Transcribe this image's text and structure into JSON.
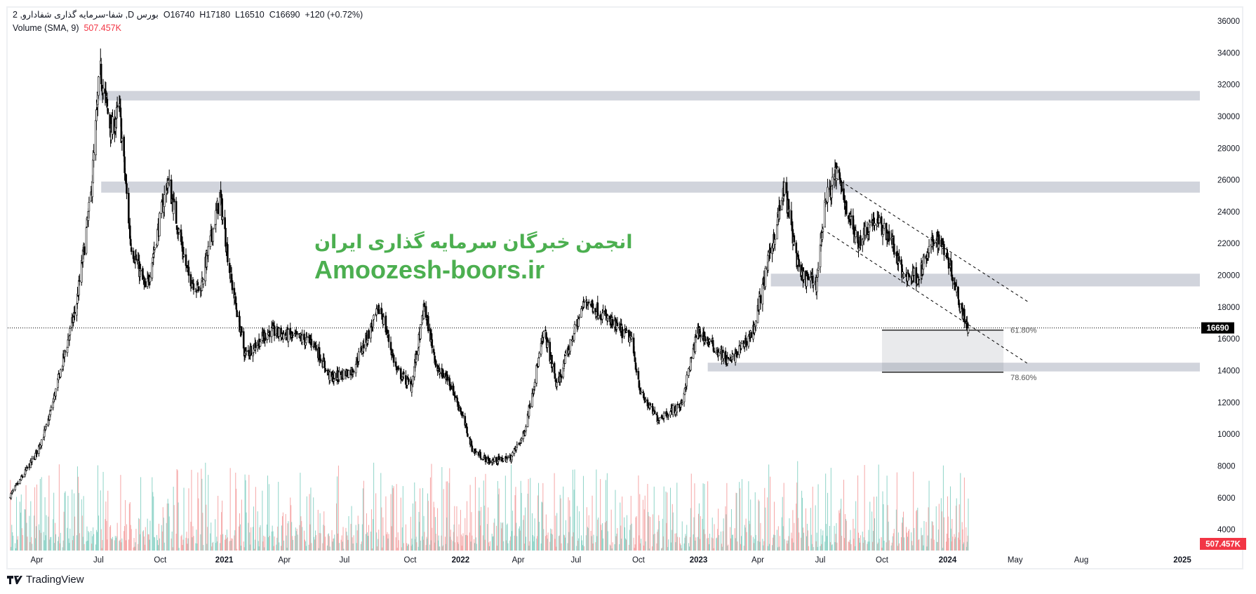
{
  "header": {
    "symbol_line": "شفا-سرمایه گذاری شفادارو, 2 ,D بورس",
    "open": "O16740",
    "high": "H17180",
    "low": "L16510",
    "close": "C16690",
    "change": "+120 (+0.72%)",
    "volume_label": "Volume (SMA, 9)",
    "volume_value": "507.457K"
  },
  "watermark": {
    "line1": "انجمن خبرگان سرمایه گذاری ایران",
    "line2": "Amoozesh-boors.ir",
    "color": "#4caf50"
  },
  "branding": {
    "name": "TradingView"
  },
  "colors": {
    "candle": "#000000",
    "zone": "#d1d4dc",
    "volume_up": "#8fd4c8",
    "volume_down": "#f5a6a6",
    "volume_badge": "#f23645",
    "price_badge": "#000000"
  },
  "chart_data": {
    "type": "candlestick",
    "title": "",
    "price_axis": {
      "ticks": [
        36000,
        34000,
        32000,
        30000,
        28000,
        26000,
        24000,
        22000,
        20000,
        18000,
        16000,
        14000,
        12000,
        10000,
        8000,
        6000,
        4000
      ],
      "range": [
        4000,
        36000
      ]
    },
    "time_axis": {
      "ticks": [
        {
          "label": "Apr",
          "date": "2020-04-01"
        },
        {
          "label": "Jul",
          "date": "2020-07-01"
        },
        {
          "label": "Oct",
          "date": "2020-10-01"
        },
        {
          "label": "2021",
          "date": "2021-01-01",
          "bold": true
        },
        {
          "label": "Apr",
          "date": "2021-04-01"
        },
        {
          "label": "Jul",
          "date": "2021-07-01"
        },
        {
          "label": "Oct",
          "date": "2021-10-01"
        },
        {
          "label": "2022",
          "date": "2022-01-01",
          "bold": true
        },
        {
          "label": "Apr",
          "date": "2022-04-01"
        },
        {
          "label": "Jul",
          "date": "2022-07-01"
        },
        {
          "label": "Oct",
          "date": "2022-10-01"
        },
        {
          "label": "2023",
          "date": "2023-01-01",
          "bold": true
        },
        {
          "label": "Apr",
          "date": "2023-04-01"
        },
        {
          "label": "Jul",
          "date": "2023-07-01"
        },
        {
          "label": "Oct",
          "date": "2023-10-01"
        },
        {
          "label": "2024",
          "date": "2024-01-01",
          "bold": true
        },
        {
          "label": "May",
          "date": "2024-05-01"
        },
        {
          "label": "Aug",
          "date": "2024-08-01"
        },
        {
          "label": "2025",
          "date": "2025-01-01",
          "bold": true
        }
      ]
    },
    "price_path": [
      [
        "2020-02-20",
        6000
      ],
      [
        "2020-03-28",
        8500
      ],
      [
        "2020-04-16",
        10500
      ],
      [
        "2020-05-29",
        18000
      ],
      [
        "2020-06-20",
        25000
      ],
      [
        "2020-07-03",
        33000
      ],
      [
        "2020-07-20",
        29000
      ],
      [
        "2020-08-01",
        30500
      ],
      [
        "2020-08-18",
        22000
      ],
      [
        "2020-09-10",
        19000
      ],
      [
        "2020-10-12",
        26000
      ],
      [
        "2020-11-10",
        20000
      ],
      [
        "2020-11-27",
        19000
      ],
      [
        "2020-12-26",
        25000
      ],
      [
        "2021-01-10",
        20000
      ],
      [
        "2021-02-01",
        15000
      ],
      [
        "2021-03-10",
        16500
      ],
      [
        "2021-05-15",
        15800
      ],
      [
        "2021-06-10",
        13500
      ],
      [
        "2021-07-12",
        14000
      ],
      [
        "2021-08-20",
        18000
      ],
      [
        "2021-09-12",
        14000
      ],
      [
        "2021-10-03",
        13000
      ],
      [
        "2021-10-27",
        18000
      ],
      [
        "2021-11-20",
        14000
      ],
      [
        "2021-12-10",
        13500
      ],
      [
        "2022-01-01",
        11500
      ],
      [
        "2022-01-20",
        9000
      ],
      [
        "2022-02-15",
        8300
      ],
      [
        "2022-03-20",
        8500
      ],
      [
        "2022-04-10",
        10000
      ],
      [
        "2022-05-12",
        16500
      ],
      [
        "2022-06-01",
        13000
      ],
      [
        "2022-07-15",
        18500
      ],
      [
        "2022-08-22",
        17000
      ],
      [
        "2022-09-20",
        16000
      ],
      [
        "2022-10-05",
        12500
      ],
      [
        "2022-10-30",
        11000
      ],
      [
        "2022-12-05",
        11800
      ],
      [
        "2022-12-31",
        16500
      ],
      [
        "2023-02-05",
        15000
      ],
      [
        "2023-02-17",
        14500
      ],
      [
        "2023-03-25",
        16500
      ],
      [
        "2023-04-12",
        20000
      ],
      [
        "2023-05-10",
        25500
      ],
      [
        "2023-06-01",
        20000
      ],
      [
        "2023-06-25",
        19500
      ],
      [
        "2023-07-08",
        24500
      ],
      [
        "2023-07-25",
        26500
      ],
      [
        "2023-08-25",
        22000
      ],
      [
        "2023-09-18",
        23500
      ],
      [
        "2023-10-12",
        22500
      ],
      [
        "2023-10-30",
        20000
      ],
      [
        "2023-11-22",
        20000
      ],
      [
        "2023-12-15",
        22500
      ],
      [
        "2023-12-30",
        21500
      ],
      [
        "2024-01-25",
        18000
      ],
      [
        "2024-02-08",
        16690
      ]
    ],
    "last_price": 16690,
    "zones": [
      {
        "from": "2020-06-28",
        "low": 31000,
        "high": 31600
      },
      {
        "from": "2020-07-05",
        "low": 25200,
        "high": 25900
      },
      {
        "from": "2023-04-20",
        "low": 19300,
        "high": 20100
      },
      {
        "from": "2023-01-15",
        "low": 13950,
        "high": 14500
      }
    ],
    "channel": [
      {
        "from": [
          "2023-07-25",
          26100
        ],
        "to": [
          "2024-05-20",
          18300
        ]
      },
      {
        "from": [
          "2023-07-12",
          22700
        ],
        "to": [
          "2024-05-20",
          14400
        ]
      }
    ],
    "fib_box": {
      "from": "2023-10-01",
      "to": "2024-04-10",
      "levels": [
        {
          "label": "61.80%",
          "price": 16550
        },
        {
          "label": "78.60%",
          "price": 13900
        }
      ]
    },
    "volume_sma_last": "507.457K"
  }
}
